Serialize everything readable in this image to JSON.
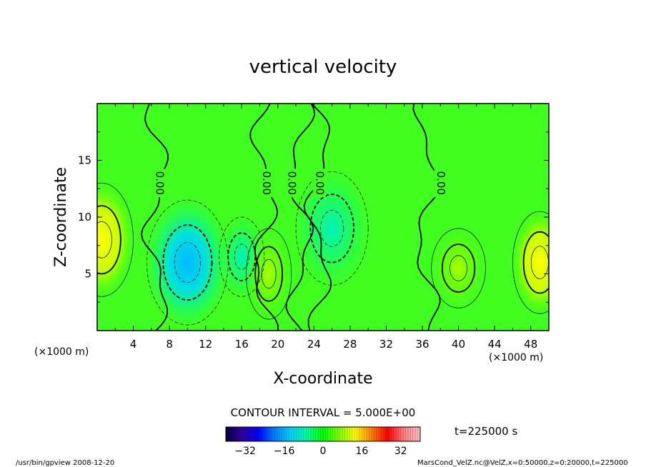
{
  "chart_data": {
    "type": "heatmap",
    "title": "vertical velocity",
    "xlabel": "X-coordinate",
    "ylabel": "Z-coordinate",
    "x_unit_label_left": "(×1000 m)",
    "x_unit_label_right": "(×1000 m)",
    "xlim": [
      0,
      50
    ],
    "ylim": [
      0,
      20
    ],
    "x_ticks": [
      4,
      8,
      12,
      16,
      20,
      24,
      28,
      32,
      36,
      40,
      44,
      48
    ],
    "y_ticks": [
      5,
      10,
      15
    ],
    "contour_interval_text": "CONTOUR INTERVAL = 5.000E+00",
    "zero_contour_label": "0.00",
    "zero_contour_x": [
      6.5,
      18.5,
      22.5,
      24.5,
      36.5
    ],
    "time_label": "t=225000 s",
    "colorbar": {
      "range": [
        -40,
        40
      ],
      "ticks": [
        -32,
        -16,
        0,
        16,
        32
      ],
      "colors": [
        "#000040",
        "#3000a0",
        "#0000ff",
        "#0080ff",
        "#00d0ff",
        "#00ffa0",
        "#00ff00",
        "#80ff00",
        "#ffff00",
        "#ff8000",
        "#ff0000",
        "#ff8080",
        "#ffc0c0"
      ]
    },
    "features": [
      {
        "name": "downdraft-core",
        "x": 10,
        "z": 6,
        "value": -12
      },
      {
        "name": "downdraft-weak",
        "x": 16,
        "z": 6.5,
        "value": -6
      },
      {
        "name": "downdraft-mid",
        "x": 26,
        "z": 9,
        "value": -6
      },
      {
        "name": "updraft-left-edge",
        "x": 0.5,
        "z": 8,
        "value": 12
      },
      {
        "name": "updraft-right-edge",
        "x": 49,
        "z": 6,
        "value": 12
      },
      {
        "name": "updraft-center",
        "x": 19,
        "z": 5,
        "value": 6
      },
      {
        "name": "updraft-right",
        "x": 40,
        "z": 5.5,
        "value": 8
      }
    ],
    "grid": false,
    "legend": "bottom-center"
  },
  "footer": {
    "left": "/usr/bin/gpview   2008-12-20",
    "right": "MarsCond_VelZ.nc@VelZ,x=0:50000,z=0:20000,t=225000"
  }
}
